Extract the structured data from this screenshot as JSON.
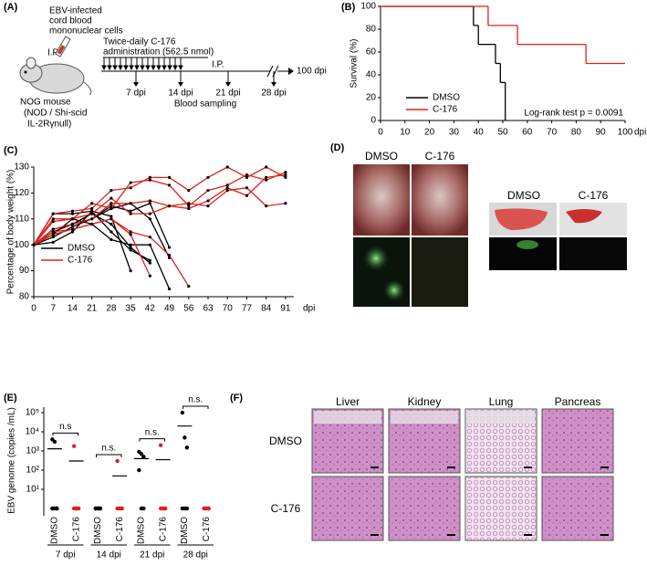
{
  "panel_a": {
    "label": "(A)",
    "inoculum": [
      "EBV-infected",
      "cord blood",
      "mononuclear cells"
    ],
    "route": "I.P.",
    "mouse": [
      "NOG mouse",
      "(NOD / Shi-scid",
      "IL-2Rγnull)"
    ],
    "treatment": [
      "Twice-daily C-176",
      "administration (562.5 nmol)"
    ],
    "treatment_route": "I.P.",
    "endpoint": "100 dpi",
    "sampling_days": [
      "7 dpi",
      "14 dpi",
      "21 dpi",
      "28 dpi"
    ],
    "sampling": "Blood sampling"
  },
  "panel_d": {
    "label": "(D)",
    "left_columns": [
      "DMSO",
      "C-176"
    ],
    "right_columns": [
      "DMSO",
      "C-176"
    ]
  },
  "panel_f": {
    "label": "(F)",
    "columns": [
      "Liver",
      "Kidney",
      "Lung",
      "Pancreas"
    ],
    "rows": [
      "DMSO",
      "C-176"
    ]
  },
  "chart_data": [
    {
      "type": "step",
      "panel_label": "(B)",
      "ylabel": "Survival (%)",
      "xlabel": "dpi",
      "xlim": [
        0,
        100
      ],
      "ylim": [
        0,
        100
      ],
      "xticks": [
        0,
        10,
        20,
        30,
        40,
        50,
        60,
        70,
        80,
        90,
        100
      ],
      "yticks": [
        0,
        20,
        40,
        60,
        80,
        100
      ],
      "legend": "lower left",
      "annotation": "Log-rank test p = 0.0091",
      "series": [
        {
          "name": "DMSO",
          "color": "#000000",
          "x": [
            0,
            38,
            40,
            47,
            49,
            51
          ],
          "values": [
            100,
            83.3,
            66.7,
            50,
            33.3,
            0
          ]
        },
        {
          "name": "C-176",
          "color": "#e0201b",
          "x": [
            0,
            40,
            44,
            56,
            84,
            100
          ],
          "values": [
            100,
            100,
            83.3,
            66.7,
            50,
            50
          ]
        }
      ]
    },
    {
      "type": "line",
      "panel_label": "(C)",
      "ylabel": "Percentage of body weight (%)",
      "xlabel": "dpi",
      "xlim": [
        0,
        94
      ],
      "ylim": [
        80,
        130
      ],
      "xticks": [
        0,
        7,
        14,
        21,
        28,
        35,
        42,
        49,
        56,
        63,
        70,
        77,
        84,
        91
      ],
      "yticks": [
        80,
        90,
        100,
        110,
        120,
        130
      ],
      "legend": "lower left",
      "x": [
        0,
        7,
        14,
        21,
        28,
        35,
        42,
        49,
        56,
        63,
        70,
        77,
        84,
        91
      ],
      "groups": [
        {
          "name": "DMSO",
          "color": "#000000",
          "mice": [
            [
              100,
              112,
              112,
              113,
              111,
              90,
              null,
              null,
              null,
              null,
              null,
              null,
              null,
              null
            ],
            [
              100,
              105,
              108,
              112,
              108,
              99,
              93,
              null,
              null,
              null,
              null,
              null,
              null,
              null
            ],
            [
              100,
              103,
              107,
              110,
              114,
              116,
              110,
              95,
              null,
              null,
              null,
              null,
              null,
              null
            ],
            [
              100,
              104,
              110,
              108,
              102,
              100,
              100,
              83,
              null,
              null,
              null,
              null,
              null,
              null
            ],
            [
              100,
              106,
              108,
              110,
              115,
              113,
              116,
              99,
              null,
              null,
              null,
              null,
              null,
              null
            ],
            [
              100,
              101,
              105,
              113,
              105,
              98,
              94,
              null,
              null,
              null,
              null,
              null,
              null,
              null
            ]
          ]
        },
        {
          "name": "C-176",
          "color": "#e0201b",
          "mice": [
            [
              100,
              112,
              113,
              114,
              121,
              122,
              126,
              126,
              121,
              126,
              130,
              126,
              130,
              126
            ],
            [
              100,
              110,
              110,
              116,
              114,
              124,
              125,
              123,
              115,
              121,
              123,
              127,
              125,
              128
            ],
            [
              100,
              106,
              108,
              110,
              116,
              116,
              117,
              115,
              116,
              115,
              121,
              122,
              115,
              116
            ],
            [
              100,
              109,
              110,
              112,
              118,
              112,
              112,
              115,
              114,
              117,
              122,
              119,
              126,
              127
            ],
            [
              100,
              105,
              106,
              108,
              110,
              104,
              88,
              null,
              null,
              null,
              null,
              null,
              null,
              null
            ],
            [
              100,
              104,
              106,
              108,
              110,
              105,
              103,
              96,
              84,
              null,
              null,
              null,
              null,
              null
            ]
          ]
        }
      ]
    },
    {
      "type": "strip",
      "panel_label": "(E)",
      "ylabel": "EBV genome (copies /mL)",
      "yscale": "log",
      "ylim": [
        1,
        100000
      ],
      "yticks": [
        {
          "value": 10,
          "label": "10¹"
        },
        {
          "value": 100,
          "label": "10²"
        },
        {
          "value": 1000,
          "label": "10³"
        },
        {
          "value": 10000,
          "label": "10⁴"
        },
        {
          "value": 100000,
          "label": "10⁵"
        }
      ],
      "categories": [
        "DMSO",
        "C-176",
        "DMSO",
        "C-176",
        "DMSO",
        "C-176",
        "DMSO",
        "C-176"
      ],
      "colors": [
        "#000000",
        "#e0201b",
        "#000000",
        "#e0201b",
        "#000000",
        "#e0201b",
        "#000000",
        "#e0201b"
      ],
      "groups": [
        "7 dpi",
        "14 dpi",
        "21 dpi",
        "28 dpi"
      ],
      "group_annotations": [
        "n.s",
        "n.s.",
        "n.s.",
        "n.s."
      ],
      "points": [
        [
          4000,
          3000,
          1,
          1,
          1,
          1,
          1
        ],
        [
          1800,
          1,
          1,
          1,
          1,
          1
        ],
        [
          1,
          1,
          1,
          1,
          1,
          1
        ],
        [
          300,
          1,
          1,
          1,
          1,
          1
        ],
        [
          900,
          700,
          500,
          100,
          1,
          1
        ],
        [
          2000,
          1,
          1,
          1,
          1,
          1
        ],
        [
          100000,
          5000,
          1500,
          1,
          1,
          1
        ],
        [
          1,
          1,
          1,
          1,
          1,
          1
        ]
      ],
      "medians": [
        1300,
        300,
        null,
        50,
        400,
        350,
        20000,
        null
      ]
    }
  ]
}
